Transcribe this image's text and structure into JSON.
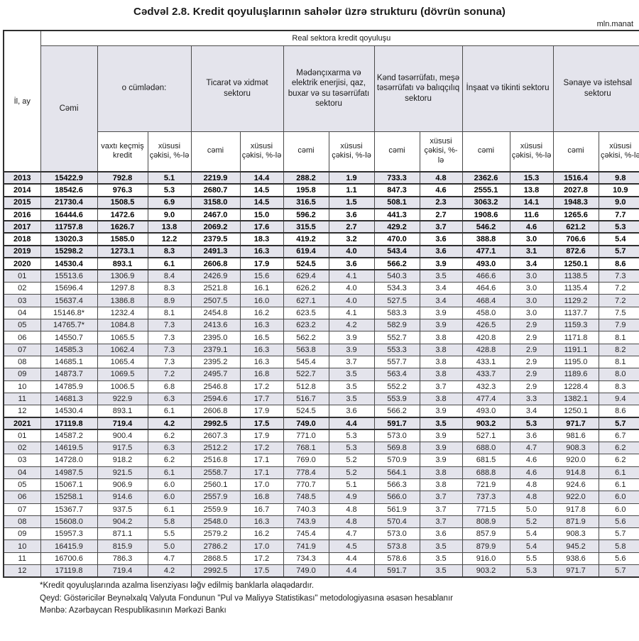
{
  "title": "Cədvəl 2.8. Kredit qoyuluşlarının sahələr üzrə strukturu (dövrün sonuna)",
  "unit_label": "mln.manat",
  "colors": {
    "shaded_row": "#e4e4ec",
    "border": "#2f2f2f",
    "text": "#1a1a1a"
  },
  "table": {
    "top_header": "Real sektora kredit qoyuluşu",
    "row_header_label": "İl, ay",
    "groups": [
      {
        "label": "Cəmi"
      },
      {
        "label": "o cümlədən:",
        "subs": [
          "vaxtı keçmiş kredit",
          "xüsusi çəkisi, %-lə"
        ]
      },
      {
        "label": "Ticarət və xidmət sektoru",
        "subs": [
          "cəmi",
          "xüsusi çəkisi, %-lə"
        ]
      },
      {
        "label": "Mədənçıxarma və elektrik enerjisi, qaz, buxar və su təsərrüfatı sektoru",
        "subs": [
          "cəmi",
          "xüsusi çəkisi, %-lə"
        ]
      },
      {
        "label": "Kənd təsərrüfatı, meşə təsərrüfatı və balıqçılıq sektoru",
        "subs": [
          "cəmi",
          "xüsusi çəkisi, %-lə"
        ]
      },
      {
        "label": "İnşaat və tikinti sektoru",
        "subs": [
          "cəmi",
          "xüsusi çəkisi, %-lə"
        ]
      },
      {
        "label": "Sənaye və istehsal sektoru",
        "subs": [
          "cəmi",
          "xüsusi çəkisi, %-lə"
        ]
      }
    ],
    "rows": [
      {
        "label": "2013",
        "bold": true,
        "values": [
          "15422.9",
          "792.8",
          "5.1",
          "2219.9",
          "14.4",
          "288.2",
          "1.9",
          "733.3",
          "4.8",
          "2362.6",
          "15.3",
          "1516.4",
          "9.8"
        ]
      },
      {
        "label": "2014",
        "bold": true,
        "values": [
          "18542.6",
          "976.3",
          "5.3",
          "2680.7",
          "14.5",
          "195.8",
          "1.1",
          "847.3",
          "4.6",
          "2555.1",
          "13.8",
          "2027.8",
          "10.9"
        ]
      },
      {
        "label": "2015",
        "bold": true,
        "values": [
          "21730.4",
          "1508.5",
          "6.9",
          "3158.0",
          "14.5",
          "316.5",
          "1.5",
          "508.1",
          "2.3",
          "3063.2",
          "14.1",
          "1948.3",
          "9.0"
        ]
      },
      {
        "label": "2016",
        "bold": true,
        "values": [
          "16444.6",
          "1472.6",
          "9.0",
          "2467.0",
          "15.0",
          "596.2",
          "3.6",
          "441.3",
          "2.7",
          "1908.6",
          "11.6",
          "1265.6",
          "7.7"
        ]
      },
      {
        "label": "2017",
        "bold": true,
        "values": [
          "11757.8",
          "1626.7",
          "13.8",
          "2069.2",
          "17.6",
          "315.5",
          "2.7",
          "429.2",
          "3.7",
          "546.2",
          "4.6",
          "621.2",
          "5.3"
        ]
      },
      {
        "label": "2018",
        "bold": true,
        "values": [
          "13020.3",
          "1585.0",
          "12.2",
          "2379.5",
          "18.3",
          "419.2",
          "3.2",
          "470.0",
          "3.6",
          "388.8",
          "3.0",
          "706.6",
          "5.4"
        ]
      },
      {
        "label": "2019",
        "bold": true,
        "values": [
          "15298.2",
          "1273.1",
          "8.3",
          "2491.3",
          "16.3",
          "619.4",
          "4.0",
          "543.4",
          "3.6",
          "477.1",
          "3.1",
          "872.6",
          "5.7"
        ]
      },
      {
        "label": "2020",
        "bold": true,
        "values": [
          "14530.4",
          "893.1",
          "6.1",
          "2606.8",
          "17.9",
          "524.5",
          "3.6",
          "566.2",
          "3.9",
          "493.0",
          "3.4",
          "1250.1",
          "8.6"
        ]
      },
      {
        "label": "01",
        "bold": false,
        "values": [
          "15513.6",
          "1306.9",
          "8.4",
          "2426.9",
          "15.6",
          "629.4",
          "4.1",
          "540.3",
          "3.5",
          "466.6",
          "3.0",
          "1138.5",
          "7.3"
        ]
      },
      {
        "label": "02",
        "bold": false,
        "values": [
          "15696.4",
          "1297.8",
          "8.3",
          "2521.8",
          "16.1",
          "626.2",
          "4.0",
          "534.3",
          "3.4",
          "464.6",
          "3.0",
          "1135.4",
          "7.2"
        ]
      },
      {
        "label": "03",
        "bold": false,
        "values": [
          "15637.4",
          "1386.8",
          "8.9",
          "2507.5",
          "16.0",
          "627.1",
          "4.0",
          "527.5",
          "3.4",
          "468.4",
          "3.0",
          "1129.2",
          "7.2"
        ]
      },
      {
        "label": "04",
        "bold": false,
        "values": [
          "15146.8*",
          "1232.4",
          "8.1",
          "2454.8",
          "16.2",
          "623.5",
          "4.1",
          "583.3",
          "3.9",
          "458.0",
          "3.0",
          "1137.7",
          "7.5"
        ]
      },
      {
        "label": "05",
        "bold": false,
        "values": [
          "14765.7*",
          "1084.8",
          "7.3",
          "2413.6",
          "16.3",
          "623.2",
          "4.2",
          "582.9",
          "3.9",
          "426.5",
          "2.9",
          "1159.3",
          "7.9"
        ]
      },
      {
        "label": "06",
        "bold": false,
        "values": [
          "14550.7",
          "1065.5",
          "7.3",
          "2395.0",
          "16.5",
          "562.2",
          "3.9",
          "552.7",
          "3.8",
          "420.8",
          "2.9",
          "1171.8",
          "8.1"
        ]
      },
      {
        "label": "07",
        "bold": false,
        "values": [
          "14585.3",
          "1062.4",
          "7.3",
          "2379.1",
          "16.3",
          "563.8",
          "3.9",
          "553.3",
          "3.8",
          "428.8",
          "2.9",
          "1191.1",
          "8.2"
        ]
      },
      {
        "label": "08",
        "bold": false,
        "values": [
          "14685.1",
          "1065.4",
          "7.3",
          "2395.2",
          "16.3",
          "545.4",
          "3.7",
          "557.7",
          "3.8",
          "433.1",
          "2.9",
          "1195.0",
          "8.1"
        ]
      },
      {
        "label": "09",
        "bold": false,
        "values": [
          "14873.7",
          "1069.5",
          "7.2",
          "2495.7",
          "16.8",
          "522.7",
          "3.5",
          "563.4",
          "3.8",
          "433.7",
          "2.9",
          "1189.6",
          "8.0"
        ]
      },
      {
        "label": "10",
        "bold": false,
        "values": [
          "14785.9",
          "1006.5",
          "6.8",
          "2546.8",
          "17.2",
          "512.8",
          "3.5",
          "552.2",
          "3.7",
          "432.3",
          "2.9",
          "1228.4",
          "8.3"
        ]
      },
      {
        "label": "11",
        "bold": false,
        "values": [
          "14681.3",
          "922.9",
          "6.3",
          "2594.6",
          "17.7",
          "516.7",
          "3.5",
          "553.9",
          "3.8",
          "477.4",
          "3.3",
          "1382.1",
          "9.4"
        ]
      },
      {
        "label": "12",
        "bold": false,
        "values": [
          "14530.4",
          "893.1",
          "6.1",
          "2606.8",
          "17.9",
          "524.5",
          "3.6",
          "566.2",
          "3.9",
          "493.0",
          "3.4",
          "1250.1",
          "8.6"
        ]
      },
      {
        "label": "2021",
        "bold": true,
        "values": [
          "17119.8",
          "719.4",
          "4.2",
          "2992.5",
          "17.5",
          "749.0",
          "4.4",
          "591.7",
          "3.5",
          "903.2",
          "5.3",
          "971.7",
          "5.7"
        ]
      },
      {
        "label": "01",
        "bold": false,
        "values": [
          "14587.2",
          "900.4",
          "6.2",
          "2607.3",
          "17.9",
          "771.0",
          "5.3",
          "573.0",
          "3.9",
          "527.1",
          "3.6",
          "981.6",
          "6.7"
        ]
      },
      {
        "label": "02",
        "bold": false,
        "values": [
          "14619.5",
          "917.5",
          "6.3",
          "2512.2",
          "17.2",
          "768.1",
          "5.3",
          "569.8",
          "3.9",
          "688.0",
          "4.7",
          "908.3",
          "6.2"
        ]
      },
      {
        "label": "03",
        "bold": false,
        "values": [
          "14728.0",
          "918.2",
          "6.2",
          "2516.8",
          "17.1",
          "769.0",
          "5.2",
          "570.9",
          "3.9",
          "681.5",
          "4.6",
          "920.0",
          "6.2"
        ]
      },
      {
        "label": "04",
        "bold": false,
        "values": [
          "14987.5",
          "921.5",
          "6.1",
          "2558.7",
          "17.1",
          "778.4",
          "5.2",
          "564.1",
          "3.8",
          "688.8",
          "4.6",
          "914.8",
          "6.1"
        ]
      },
      {
        "label": "05",
        "bold": false,
        "values": [
          "15067.1",
          "906.9",
          "6.0",
          "2560.1",
          "17.0",
          "770.7",
          "5.1",
          "566.3",
          "3.8",
          "721.9",
          "4.8",
          "924.6",
          "6.1"
        ]
      },
      {
        "label": "06",
        "bold": false,
        "values": [
          "15258.1",
          "914.6",
          "6.0",
          "2557.9",
          "16.8",
          "748.5",
          "4.9",
          "566.0",
          "3.7",
          "737.3",
          "4.8",
          "922.0",
          "6.0"
        ]
      },
      {
        "label": "07",
        "bold": false,
        "values": [
          "15367.7",
          "937.5",
          "6.1",
          "2559.9",
          "16.7",
          "740.3",
          "4.8",
          "561.9",
          "3.7",
          "771.5",
          "5.0",
          "917.8",
          "6.0"
        ]
      },
      {
        "label": "08",
        "bold": false,
        "values": [
          "15608.0",
          "904.2",
          "5.8",
          "2548.0",
          "16.3",
          "743.9",
          "4.8",
          "570.4",
          "3.7",
          "808.9",
          "5.2",
          "871.9",
          "5.6"
        ]
      },
      {
        "label": "09",
        "bold": false,
        "values": [
          "15957.3",
          "871.1",
          "5.5",
          "2579.2",
          "16.2",
          "745.4",
          "4.7",
          "573.0",
          "3.6",
          "857.9",
          "5.4",
          "908.3",
          "5.7"
        ]
      },
      {
        "label": "10",
        "bold": false,
        "values": [
          "16415.9",
          "815.9",
          "5.0",
          "2786.2",
          "17.0",
          "741.9",
          "4.5",
          "573.8",
          "3.5",
          "879.9",
          "5.4",
          "945.2",
          "5.8"
        ]
      },
      {
        "label": "11",
        "bold": false,
        "values": [
          "16700.6",
          "786.3",
          "4.7",
          "2868.5",
          "17.2",
          "734.3",
          "4.4",
          "578.6",
          "3.5",
          "916.0",
          "5.5",
          "938.6",
          "5.6"
        ]
      },
      {
        "label": "12",
        "bold": false,
        "values": [
          "17119.8",
          "719.4",
          "4.2",
          "2992.5",
          "17.5",
          "749.0",
          "4.4",
          "591.7",
          "3.5",
          "903.2",
          "5.3",
          "971.7",
          "5.7"
        ]
      }
    ]
  },
  "footnotes": [
    "*Kredit qoyuluşlarında azalma lisenziyası ləğv edilmiş banklarla əlaqədardır.",
    "Qeyd: Göstəricilər Beynəlxalq Valyuta Fondunun \"Pul və Maliyyə Statistikası\" metodologiyasına əsasən hesablanır",
    "Mənbə: Azərbaycan Respublikasının Mərkəzi Bankı"
  ]
}
